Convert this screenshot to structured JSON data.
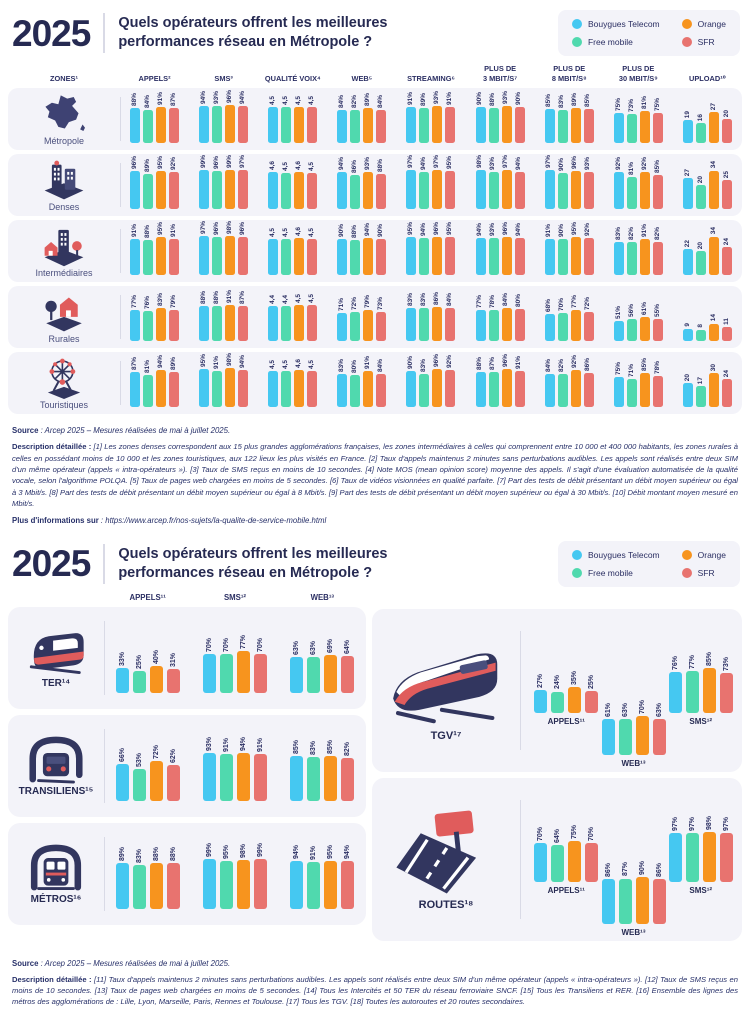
{
  "legend": {
    "items": [
      {
        "name": "Bouygues Telecom",
        "color": "#45c8f1"
      },
      {
        "name": "Free mobile",
        "color": "#50d9ae"
      },
      {
        "name": "Orange",
        "color": "#f7941e"
      },
      {
        "name": "SFR",
        "color": "#e8736f"
      }
    ]
  },
  "section1": {
    "year": "2025",
    "title": "Quels opérateurs offrent les meilleures\nperformances réseau en Métropole ?",
    "source_label": "Source",
    "source_text": " : Arcep 2025 – Mesures réalisées de mai à juillet 2025.",
    "description_label": "Description détaillée :",
    "description_text": "[1] Les zones denses correspondent aux 15 plus grandes agglomérations françaises, les zones intermédiaires à celles qui comprennent entre 10 000 et 400 000 habitants, les zones rurales à celles en possédant moins de 10 000 et les zones touristiques, aux 122 lieux les plus visités en France. [2] Taux d'appels maintenus 2 minutes sans perturbations audibles. Les appels sont réalisés entre deux SIM d'un même opérateur (appels « intra-opérateurs »). [3] Taux de SMS reçus en moins de 10 secondes. [4] Note MOS (mean opinion score) moyenne des appels. Il s'agit d'une évaluation automatisée de la qualité vocale, selon l'algorithme POLQA. [5] Taux de pages web chargées en moins de 5 secondes. [6] Taux de vidéos visionnées en qualité parfaite. [7] Part des tests de débit présentant un débit moyen supérieur ou égal à 3 Mbit/s. [8] Part des tests de débit présentant un débit moyen supérieur ou égal à 8 Mbit/s. [9] Part des tests de débit présentant un débit moyen supérieur ou égal à 30 Mbit/s. [10] Débit montant moyen mesuré en Mbit/s.",
    "more_info_label": "Plus d'informations sur",
    "more_info_url": " : https://www.arcep.fr/nos-sujets/la-qualite-de-service-mobile.html"
  },
  "section2": {
    "year": "2025",
    "title": "Quels opérateurs offrent les meilleures\nperformances réseau en Métropole ?",
    "source_label": "Source",
    "source_text": " : Arcep 2025 – Mesures réalisées de mai à juillet 2025.",
    "description_label": "Description détaillée :",
    "description_text": "[11] Taux d'appels maintenus 2 minutes sans perturbations audibles. Les appels sont réalisés entre deux SIM d'un même opérateur (appels « intra-opérateurs »). [12] Taux de SMS reçus en moins de 10 secondes. [13] Taux de pages web chargées en moins de 5 secondes. [14] Tous les Intercités et 50 TER du réseau ferroviaire SNCF. [15] Tous les Transiliens et RER. [16] Ensemble des lignes des métros des agglomérations de : Lille, Lyon, Marseille, Paris, Rennes et Toulouse. [17] Tous les TGV. [18] Toutes les autoroutes et 20 routes secondaires."
  },
  "chart_data": [
    {
      "type": "bar",
      "title": "Quels opérateurs offrent les meilleures performances réseau en Métropole ?",
      "legend_position": "top-right",
      "series": [
        "Bouygues Telecom",
        "Free mobile",
        "Orange",
        "SFR"
      ],
      "zones_header": "ZONES¹",
      "columns": [
        {
          "key": "appels",
          "label": "APPELS²",
          "unit": "%"
        },
        {
          "key": "sms",
          "label": "SMS³",
          "unit": "%"
        },
        {
          "key": "voix",
          "label": "QUALITÉ VOIX⁴",
          "unit": "score5"
        },
        {
          "key": "web",
          "label": "WEB⁵",
          "unit": "%"
        },
        {
          "key": "streaming",
          "label": "STREAMING⁶",
          "unit": "%"
        },
        {
          "key": "mbit3",
          "label": "PLUS DE\n3 MBIT/S⁷",
          "unit": "%"
        },
        {
          "key": "mbit8",
          "label": "PLUS DE\n8 MBIT/S⁸",
          "unit": "%"
        },
        {
          "key": "mbit30",
          "label": "PLUS DE\n30 MBIT/S⁹",
          "unit": "%"
        },
        {
          "key": "upload",
          "label": "UPLOAD¹⁰",
          "unit": "mbits"
        }
      ],
      "rows": [
        {
          "zone": "Métropole",
          "icon": "metropole",
          "values": {
            "appels": [
              88,
              84,
              91,
              87
            ],
            "sms": [
              94,
              93,
              96,
              94
            ],
            "voix": [
              4.5,
              4.5,
              4.5,
              4.5
            ],
            "web": [
              84,
              82,
              89,
              84
            ],
            "streaming": [
              91,
              89,
              93,
              91
            ],
            "mbit3": [
              90,
              88,
              93,
              90
            ],
            "mbit8": [
              85,
              83,
              89,
              85
            ],
            "mbit30": [
              75,
              73,
              81,
              75
            ],
            "upload": [
              19,
              16,
              27,
              20
            ]
          }
        },
        {
          "zone": "Denses",
          "icon": "denses",
          "values": {
            "appels": [
              96,
              89,
              95,
              92
            ],
            "sms": [
              99,
              96,
              99,
              97
            ],
            "voix": [
              4.6,
              4.5,
              4.6,
              4.5
            ],
            "web": [
              94,
              86,
              93,
              88
            ],
            "streaming": [
              97,
              94,
              97,
              95
            ],
            "mbit3": [
              98,
              93,
              97,
              94
            ],
            "mbit8": [
              97,
              90,
              96,
              93
            ],
            "mbit30": [
              92,
              81,
              92,
              85
            ],
            "upload": [
              27,
              20,
              34,
              25
            ]
          }
        },
        {
          "zone": "Intermédiaires",
          "icon": "intermediaires",
          "values": {
            "appels": [
              91,
              88,
              95,
              91
            ],
            "sms": [
              97,
              96,
              98,
              96
            ],
            "voix": [
              4.5,
              4.5,
              4.6,
              4.5
            ],
            "web": [
              90,
              88,
              94,
              90
            ],
            "streaming": [
              95,
              94,
              96,
              95
            ],
            "mbit3": [
              94,
              93,
              96,
              94
            ],
            "mbit8": [
              91,
              90,
              95,
              92
            ],
            "mbit30": [
              83,
              82,
              91,
              82
            ],
            "upload": [
              22,
              20,
              34,
              24
            ]
          }
        },
        {
          "zone": "Rurales",
          "icon": "rurales",
          "values": {
            "appels": [
              77,
              76,
              83,
              79
            ],
            "sms": [
              88,
              88,
              91,
              87
            ],
            "voix": [
              4.4,
              4.4,
              4.5,
              4.5
            ],
            "web": [
              71,
              72,
              79,
              73
            ],
            "streaming": [
              83,
              83,
              86,
              84
            ],
            "mbit3": [
              77,
              78,
              84,
              80
            ],
            "mbit8": [
              68,
              70,
              77,
              72
            ],
            "mbit30": [
              51,
              56,
              61,
              55
            ],
            "upload": [
              9,
              8,
              14,
              11
            ]
          }
        },
        {
          "zone": "Touristiques",
          "icon": "touristiques",
          "values": {
            "appels": [
              87,
              81,
              94,
              89
            ],
            "sms": [
              95,
              91,
              98,
              94
            ],
            "voix": [
              4.5,
              4.5,
              4.6,
              4.5
            ],
            "web": [
              83,
              80,
              91,
              84
            ],
            "streaming": [
              90,
              83,
              96,
              92
            ],
            "mbit3": [
              88,
              87,
              96,
              91
            ],
            "mbit8": [
              84,
              82,
              92,
              86
            ],
            "mbit30": [
              75,
              71,
              85,
              78
            ],
            "upload": [
              20,
              17,
              30,
              24
            ]
          }
        }
      ]
    },
    {
      "type": "bar",
      "title": "Quels opérateurs offrent les meilleures performances réseau en Métropole ? (transports)",
      "legend_position": "top-right",
      "series": [
        "Bouygues Telecom",
        "Free mobile",
        "Orange",
        "SFR"
      ],
      "columns": [
        {
          "key": "appels",
          "label": "APPELS¹¹",
          "unit": "%"
        },
        {
          "key": "sms",
          "label": "SMS¹²",
          "unit": "%"
        },
        {
          "key": "web",
          "label": "WEB¹³",
          "unit": "%"
        }
      ],
      "rows_left": [
        {
          "zone": "TER¹⁴",
          "icon": "ter",
          "values": {
            "appels": [
              33,
              25,
              40,
              31
            ],
            "sms": [
              70,
              70,
              77,
              70
            ],
            "web": [
              63,
              63,
              69,
              64
            ]
          }
        },
        {
          "zone": "TRANSILIENS¹⁵",
          "icon": "transiliens",
          "values": {
            "appels": [
              66,
              53,
              72,
              62
            ],
            "sms": [
              93,
              91,
              94,
              91
            ],
            "web": [
              85,
              83,
              85,
              82
            ]
          }
        },
        {
          "zone": "MÉTROS¹⁶",
          "icon": "metros",
          "values": {
            "appels": [
              89,
              83,
              88,
              88
            ],
            "sms": [
              99,
              95,
              98,
              99
            ],
            "web": [
              94,
              91,
              95,
              94
            ]
          }
        }
      ],
      "panels_right": [
        {
          "zone": "TGV¹⁷",
          "icon": "tgv",
          "groups": [
            {
              "key": "appels",
              "label": "APPELS¹¹",
              "values": [
                27,
                24,
                35,
                25
              ]
            },
            {
              "key": "web",
              "label": "WEB¹³",
              "values": [
                61,
                63,
                70,
                63
              ],
              "offset": true
            },
            {
              "key": "sms",
              "label": "SMS¹²",
              "values": [
                76,
                77,
                85,
                73
              ]
            }
          ]
        },
        {
          "zone": "ROUTES¹⁸",
          "icon": "routes",
          "groups": [
            {
              "key": "appels",
              "label": "APPELS¹¹",
              "values": [
                70,
                64,
                75,
                70
              ]
            },
            {
              "key": "web",
              "label": "WEB¹³",
              "values": [
                86,
                87,
                90,
                86
              ],
              "offset": true
            },
            {
              "key": "sms",
              "label": "SMS¹²",
              "values": [
                97,
                97,
                98,
                97
              ]
            }
          ]
        }
      ]
    }
  ]
}
